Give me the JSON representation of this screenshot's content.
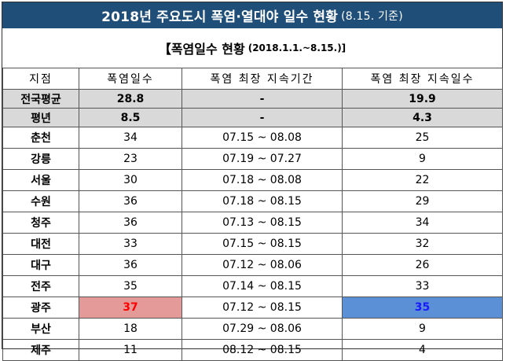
{
  "header": {
    "title": "2018년 주요도시 폭염·열대야 일수 현황",
    "date_note": "(8.15. 기준)"
  },
  "section": {
    "title": "【폭염일수 현황",
    "range": "(2018.1.1.~8.15.)]"
  },
  "table": {
    "columns": [
      "지점",
      "폭염일수",
      "폭염 최장 지속기간",
      "폭염 최장 지속일수"
    ],
    "averages": [
      {
        "name": "전국평균",
        "days": "28.8",
        "period": "-",
        "streak": "19.9"
      },
      {
        "name": "평년",
        "days": "8.5",
        "period": "-",
        "streak": "4.3"
      }
    ],
    "rows": [
      {
        "name": "춘천",
        "days": "34",
        "period": "07.15 ~ 08.08",
        "streak": "25",
        "hl": false
      },
      {
        "name": "강릉",
        "days": "23",
        "period": "07.19 ~ 07.27",
        "streak": "9",
        "hl": false
      },
      {
        "name": "서울",
        "days": "30",
        "period": "07.18 ~ 08.08",
        "streak": "22",
        "hl": false
      },
      {
        "name": "수원",
        "days": "36",
        "period": "07.18 ~ 08.15",
        "streak": "29",
        "hl": false
      },
      {
        "name": "청주",
        "days": "36",
        "period": "07.13 ~ 08.15",
        "streak": "34",
        "hl": false
      },
      {
        "name": "대전",
        "days": "33",
        "period": "07.15 ~ 08.15",
        "streak": "32",
        "hl": false
      },
      {
        "name": "대구",
        "days": "36",
        "period": "07.12 ~ 08.06",
        "streak": "26",
        "hl": false
      },
      {
        "name": "전주",
        "days": "35",
        "period": "07.14 ~ 08.15",
        "streak": "33",
        "hl": false
      },
      {
        "name": "광주",
        "days": "37",
        "period": "07.12 ~ 08.15",
        "streak": "35",
        "hl": true
      },
      {
        "name": "부산",
        "days": "18",
        "period": "07.29 ~ 08.06",
        "streak": "9",
        "hl": false
      },
      {
        "name": "제주",
        "days": "11",
        "period": "08.12 ~ 08.15",
        "streak": "4",
        "hl": false
      }
    ]
  },
  "colors": {
    "header_bg": "#1f4e79",
    "avg_bg": "#d9d9d9",
    "highlight_days_bg": "#e59a9a",
    "highlight_days_text": "#ff0000",
    "highlight_streak_bg": "#5b8fd6",
    "highlight_streak_text": "#1a1aff"
  }
}
